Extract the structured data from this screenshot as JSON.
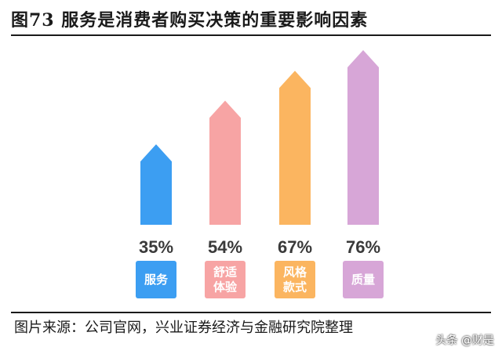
{
  "title": "图73 服务是消费者购买决策的重要影响因素",
  "source": "图片来源：公司官网，兴业证券经济与金融研究院整理",
  "watermark": "头条 @财是",
  "chart_data": {
    "type": "bar",
    "title": "图73 服务是消费者购买决策的重要影响因素",
    "categories": [
      "服务",
      "舒适\n体验",
      "风格\n款式",
      "质量"
    ],
    "values": [
      35,
      54,
      67,
      76
    ],
    "value_labels": [
      "35%",
      "54%",
      "67%",
      "76%"
    ],
    "unit": "%",
    "ylim": [
      0,
      80
    ],
    "colors": [
      "#3c9ef2",
      "#f7a4a4",
      "#fbb560",
      "#d7a6d7"
    ],
    "grid": false,
    "legend": "none"
  }
}
